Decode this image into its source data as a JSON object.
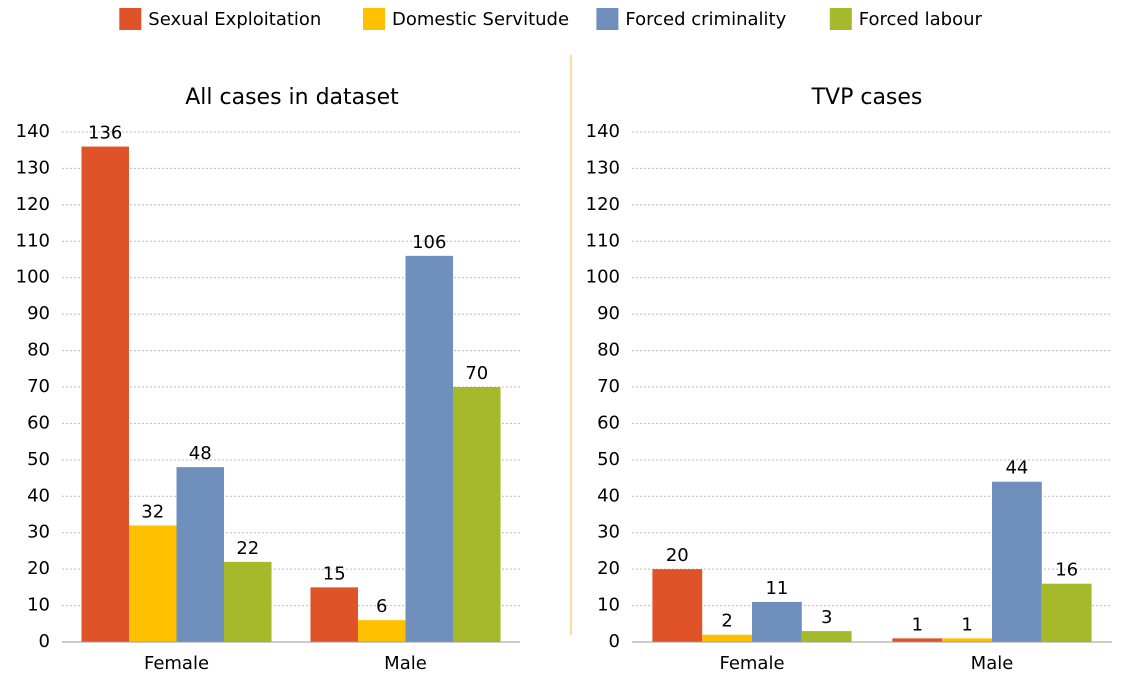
{
  "legend": [
    {
      "name": "Sexual Exploitation",
      "color": "#e05329"
    },
    {
      "name": "Domestic Servitude",
      "color": "#ffc000"
    },
    {
      "name": "Forced criminality",
      "color": "#6f8fbd"
    },
    {
      "name": "Forced labour",
      "color": "#a5b92b"
    }
  ],
  "chart_data": [
    {
      "type": "bar",
      "title": "All cases in dataset",
      "categories": [
        "Female",
        "Male"
      ],
      "series": [
        {
          "values": [
            136,
            15
          ]
        },
        {
          "values": [
            32,
            6
          ]
        },
        {
          "values": [
            48,
            106
          ]
        },
        {
          "values": [
            22,
            70
          ]
        }
      ],
      "ylim": [
        0,
        140
      ],
      "yticks": [
        0,
        10,
        20,
        30,
        40,
        50,
        60,
        70,
        80,
        90,
        100,
        110,
        120,
        130,
        140
      ],
      "grid": true
    },
    {
      "type": "bar",
      "title": "TVP cases",
      "categories": [
        "Female",
        "Male"
      ],
      "series": [
        {
          "values": [
            20,
            1
          ]
        },
        {
          "values": [
            2,
            1
          ]
        },
        {
          "values": [
            11,
            44
          ]
        },
        {
          "values": [
            3,
            16
          ]
        }
      ],
      "ylim": [
        0,
        140
      ],
      "yticks": [
        0,
        10,
        20,
        30,
        40,
        50,
        60,
        70,
        80,
        90,
        100,
        110,
        120,
        130,
        140
      ],
      "grid": true
    }
  ]
}
